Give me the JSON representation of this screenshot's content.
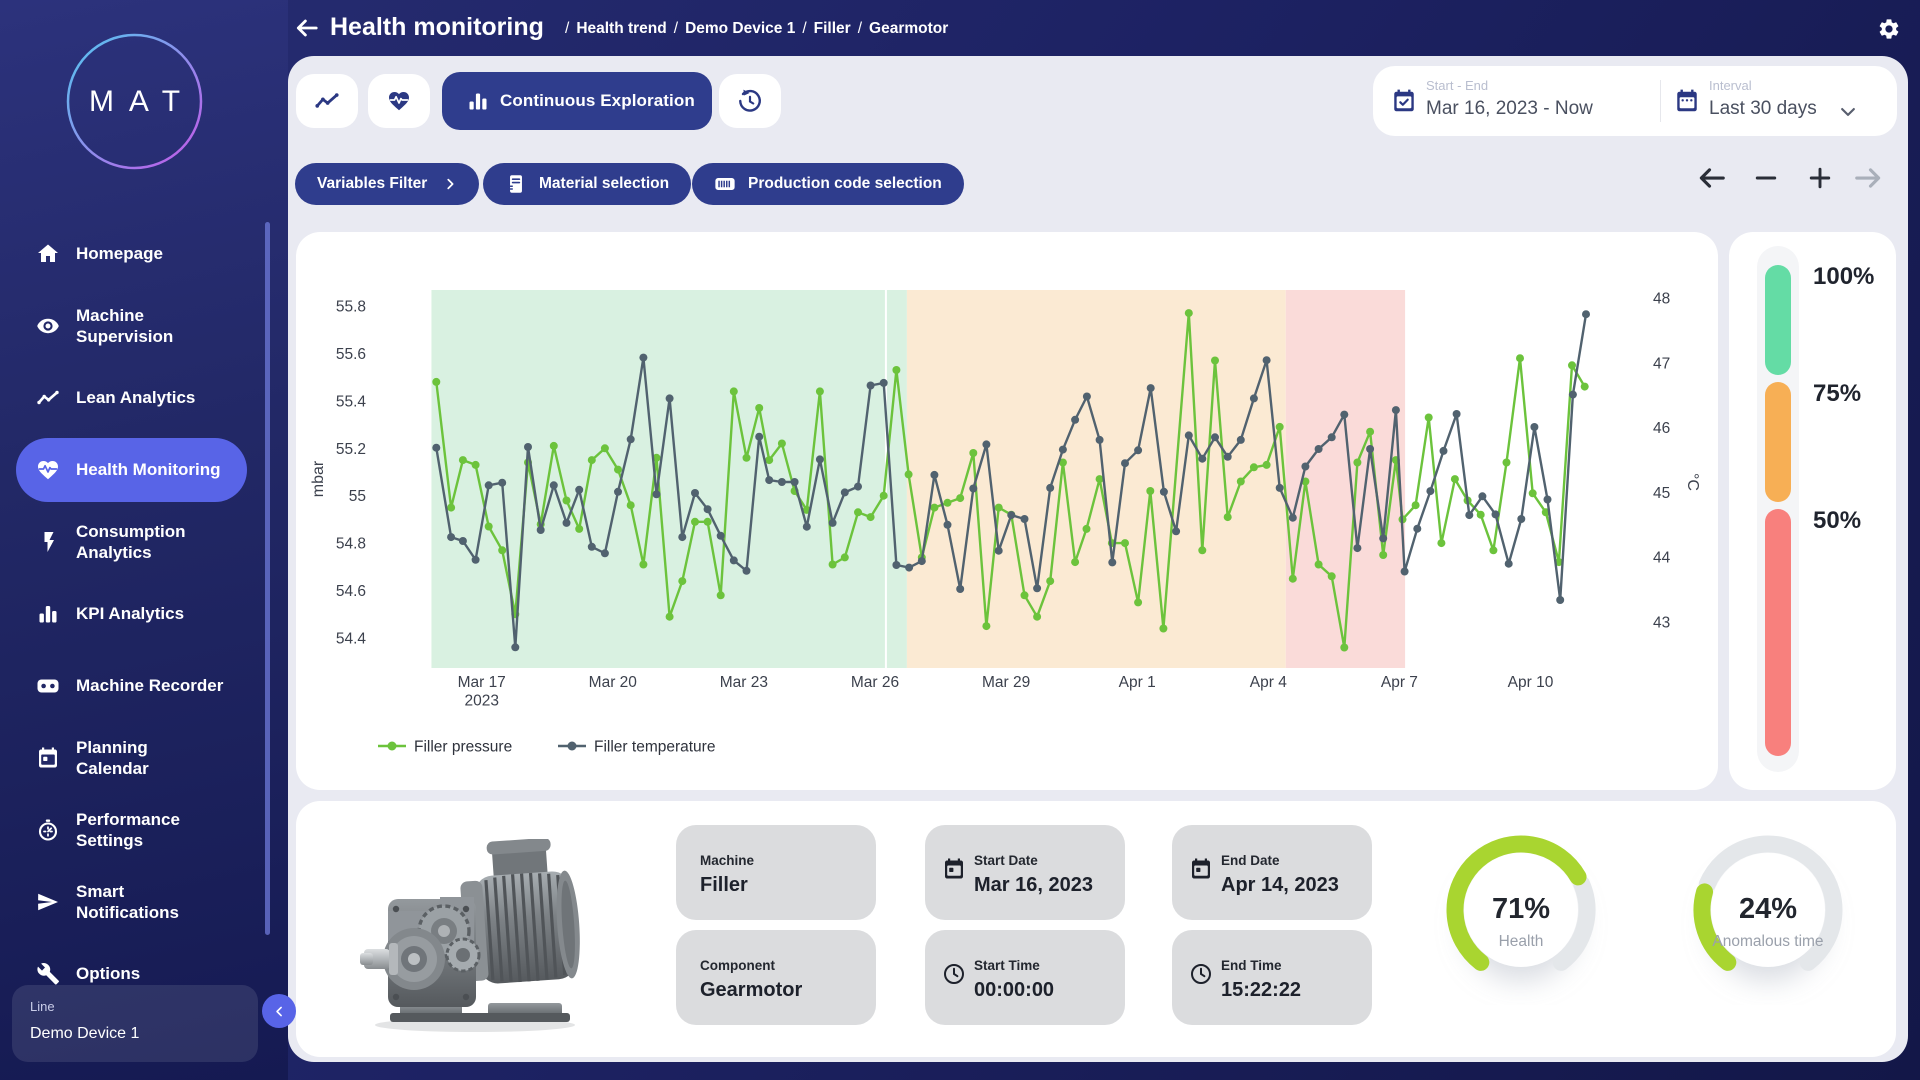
{
  "brand": {
    "logo_text": "MAT"
  },
  "header": {
    "title": "Health monitoring",
    "breadcrumbs": [
      "Health trend",
      "Demo Device 1",
      "Filler",
      "Gearmotor"
    ],
    "breadcrumb_separator": "/"
  },
  "sidebar": {
    "items": [
      {
        "label": "Homepage",
        "icon": "home"
      },
      {
        "label": "Machine Supervision",
        "icon": "eye"
      },
      {
        "label": "Lean Analytics",
        "icon": "trend"
      },
      {
        "label": "Health Monitoring",
        "icon": "heart-pulse",
        "active": true
      },
      {
        "label": "Consumption Analytics",
        "icon": "bolt"
      },
      {
        "label": "KPI Analytics",
        "icon": "bar-chart"
      },
      {
        "label": "Machine Recorder",
        "icon": "recorder"
      },
      {
        "label": "Planning Calendar",
        "icon": "calendar"
      },
      {
        "label": "Performance Settings",
        "icon": "stopwatch"
      },
      {
        "label": "Smart Notifications",
        "icon": "send"
      },
      {
        "label": "Options",
        "icon": "wrench"
      }
    ],
    "device": {
      "label": "Line",
      "value": "Demo Device 1"
    }
  },
  "toolbar": {
    "view_buttons": [
      {
        "icon": "trend",
        "name": "trend-view-button"
      },
      {
        "icon": "heart-pulse",
        "name": "health-view-button"
      }
    ],
    "active_button": {
      "icon": "column-chart",
      "label": "Continuous Exploration"
    },
    "history_button": {
      "icon": "history"
    }
  },
  "daterange": {
    "start_end_label": "Start - End",
    "start_end_value": "Mar 16, 2023 - Now",
    "interval_label": "Interval",
    "interval_value": "Last 30 days"
  },
  "filters": [
    {
      "label": "Variables Filter",
      "icon": null,
      "trailing_icon": "chevron-right"
    },
    {
      "label": "Material selection",
      "icon": "material",
      "trailing_icon": null
    },
    {
      "label": "Production code selection",
      "icon": "barcode",
      "trailing_icon": null
    }
  ],
  "pan_zoom": [
    {
      "icon": "arrow-left",
      "enabled": true
    },
    {
      "icon": "minus",
      "enabled": true
    },
    {
      "icon": "plus",
      "enabled": true
    },
    {
      "icon": "arrow-right",
      "enabled": false
    }
  ],
  "chart_data": {
    "type": "line",
    "x_unit": "days since Mar 16, 2023 00:00",
    "x_range": [
      -0.15,
      27.6
    ],
    "x_ticks": [
      {
        "day": 1,
        "label": "Mar 17",
        "sublabel": "2023"
      },
      {
        "day": 4,
        "label": "Mar 20"
      },
      {
        "day": 7,
        "label": "Mar 23"
      },
      {
        "day": 10,
        "label": "Mar 26"
      },
      {
        "day": 13,
        "label": "Mar 29"
      },
      {
        "day": 16,
        "label": "Apr 1"
      },
      {
        "day": 19,
        "label": "Apr 4"
      },
      {
        "day": 22,
        "label": "Apr 7"
      },
      {
        "day": 25,
        "label": "Apr 10"
      }
    ],
    "y_left": {
      "label": "mbar",
      "min": 54.27,
      "max": 55.87,
      "ticks": [
        54.4,
        54.6,
        54.8,
        55.0,
        55.2,
        55.4,
        55.6,
        55.8
      ]
    },
    "y_right": {
      "label": "°C",
      "min": 42.29,
      "max": 48.12,
      "ticks": [
        43,
        44,
        45,
        46,
        47,
        48
      ]
    },
    "bands": [
      {
        "from": -0.15,
        "to": 10.73,
        "color": "#d9f1e1"
      },
      {
        "from": 10.73,
        "to": 19.4,
        "color": "#fbead3"
      },
      {
        "from": 19.4,
        "to": 22.13,
        "color": "#fadbd9"
      }
    ],
    "marker_line": {
      "day": 10.25,
      "color": "#ffffff"
    },
    "series": [
      {
        "name": "Filler pressure",
        "color": "#6cc33c",
        "axis": "left",
        "points": [
          [
            -0.04,
            55.48
          ],
          [
            0.3,
            54.95
          ],
          [
            0.57,
            55.15
          ],
          [
            0.86,
            55.13
          ],
          [
            1.16,
            54.87
          ],
          [
            1.47,
            54.77
          ],
          [
            1.77,
            54.5
          ],
          [
            2.06,
            55.14
          ],
          [
            2.35,
            54.88
          ],
          [
            2.65,
            55.21
          ],
          [
            2.94,
            54.98
          ],
          [
            3.23,
            54.86
          ],
          [
            3.52,
            55.15
          ],
          [
            3.82,
            55.2
          ],
          [
            4.12,
            55.11
          ],
          [
            4.41,
            54.96
          ],
          [
            4.7,
            54.71
          ],
          [
            5.0,
            55.16
          ],
          [
            5.3,
            54.49
          ],
          [
            5.59,
            54.64
          ],
          [
            5.88,
            54.89
          ],
          [
            6.17,
            54.89
          ],
          [
            6.47,
            54.58
          ],
          [
            6.77,
            55.44
          ],
          [
            7.06,
            55.16
          ],
          [
            7.35,
            55.37
          ],
          [
            7.58,
            55.15
          ],
          [
            7.87,
            55.22
          ],
          [
            8.16,
            55.02
          ],
          [
            8.44,
            54.94
          ],
          [
            8.74,
            55.44
          ],
          [
            9.03,
            54.71
          ],
          [
            9.31,
            54.74
          ],
          [
            9.61,
            54.93
          ],
          [
            9.9,
            54.91
          ],
          [
            10.2,
            55.0
          ],
          [
            10.49,
            55.53
          ],
          [
            10.77,
            55.09
          ],
          [
            11.07,
            54.74
          ],
          [
            11.36,
            54.95
          ],
          [
            11.66,
            54.97
          ],
          [
            11.95,
            54.99
          ],
          [
            12.25,
            55.18
          ],
          [
            12.55,
            54.45
          ],
          [
            12.83,
            54.95
          ],
          [
            13.12,
            54.92
          ],
          [
            13.42,
            54.58
          ],
          [
            13.71,
            54.49
          ],
          [
            14.01,
            54.64
          ],
          [
            14.3,
            55.14
          ],
          [
            14.58,
            54.72
          ],
          [
            14.84,
            54.86
          ],
          [
            15.14,
            55.07
          ],
          [
            15.42,
            54.8
          ],
          [
            15.72,
            54.8
          ],
          [
            16.02,
            54.55
          ],
          [
            16.3,
            55.02
          ],
          [
            16.6,
            54.44
          ],
          [
            17.18,
            55.77
          ],
          [
            17.49,
            54.77
          ],
          [
            17.78,
            55.57
          ],
          [
            18.07,
            54.91
          ],
          [
            18.37,
            55.06
          ],
          [
            18.67,
            55.12
          ],
          [
            18.96,
            55.13
          ],
          [
            19.26,
            55.29
          ],
          [
            19.56,
            54.65
          ],
          [
            19.85,
            55.06
          ],
          [
            20.15,
            54.71
          ],
          [
            20.45,
            54.66
          ],
          [
            20.74,
            54.36
          ],
          [
            21.04,
            55.14
          ],
          [
            21.33,
            55.27
          ],
          [
            21.63,
            54.75
          ],
          [
            21.92,
            55.15
          ],
          [
            22.07,
            54.9
          ],
          [
            22.37,
            54.96
          ],
          [
            22.67,
            55.33
          ],
          [
            22.96,
            54.8
          ],
          [
            23.27,
            55.07
          ],
          [
            23.56,
            54.98
          ],
          [
            23.86,
            54.92
          ],
          [
            24.15,
            54.77
          ],
          [
            24.45,
            55.14
          ],
          [
            24.76,
            55.58
          ],
          [
            25.05,
            55.01
          ],
          [
            25.35,
            54.93
          ],
          [
            25.65,
            54.72
          ],
          [
            25.95,
            55.55
          ],
          [
            26.24,
            55.46
          ]
        ]
      },
      {
        "name": "Filler temperature",
        "color": "#51626f",
        "axis": "right",
        "points": [
          [
            -0.04,
            45.69
          ],
          [
            0.3,
            44.31
          ],
          [
            0.57,
            44.25
          ],
          [
            0.86,
            43.96
          ],
          [
            1.16,
            45.11
          ],
          [
            1.47,
            45.15
          ],
          [
            1.77,
            42.61
          ],
          [
            2.06,
            45.7
          ],
          [
            2.35,
            44.42
          ],
          [
            2.65,
            45.11
          ],
          [
            2.94,
            44.53
          ],
          [
            3.23,
            45.04
          ],
          [
            3.52,
            44.16
          ],
          [
            3.82,
            44.06
          ],
          [
            4.12,
            45.01
          ],
          [
            4.41,
            45.82
          ],
          [
            4.7,
            47.08
          ],
          [
            5.0,
            44.97
          ],
          [
            5.3,
            46.45
          ],
          [
            5.59,
            44.31
          ],
          [
            5.88,
            44.99
          ],
          [
            6.17,
            44.74
          ],
          [
            6.47,
            44.33
          ],
          [
            6.77,
            43.95
          ],
          [
            7.06,
            43.79
          ],
          [
            7.35,
            45.86
          ],
          [
            7.58,
            45.19
          ],
          [
            7.87,
            45.16
          ],
          [
            8.16,
            45.16
          ],
          [
            8.44,
            44.47
          ],
          [
            8.74,
            45.51
          ],
          [
            9.03,
            44.53
          ],
          [
            9.31,
            45.0
          ],
          [
            9.61,
            45.09
          ],
          [
            9.9,
            46.65
          ],
          [
            10.2,
            46.69
          ],
          [
            10.49,
            43.88
          ],
          [
            10.78,
            43.84
          ],
          [
            11.07,
            43.94
          ],
          [
            11.36,
            45.27
          ],
          [
            11.66,
            44.5
          ],
          [
            11.95,
            43.51
          ],
          [
            12.25,
            45.06
          ],
          [
            12.55,
            45.74
          ],
          [
            12.83,
            44.1
          ],
          [
            13.12,
            44.65
          ],
          [
            13.42,
            44.59
          ],
          [
            13.71,
            43.52
          ],
          [
            14.01,
            45.07
          ],
          [
            14.3,
            45.66
          ],
          [
            14.58,
            46.12
          ],
          [
            14.85,
            46.48
          ],
          [
            15.14,
            45.81
          ],
          [
            15.43,
            43.92
          ],
          [
            15.72,
            45.45
          ],
          [
            16.02,
            45.65
          ],
          [
            16.31,
            46.61
          ],
          [
            16.61,
            45.01
          ],
          [
            16.89,
            44.4
          ],
          [
            17.18,
            45.88
          ],
          [
            17.49,
            45.52
          ],
          [
            17.78,
            45.85
          ],
          [
            18.07,
            45.55
          ],
          [
            18.37,
            45.81
          ],
          [
            18.67,
            46.45
          ],
          [
            18.96,
            47.04
          ],
          [
            19.26,
            45.07
          ],
          [
            19.56,
            44.61
          ],
          [
            19.85,
            45.4
          ],
          [
            20.15,
            45.67
          ],
          [
            20.45,
            45.85
          ],
          [
            20.74,
            46.2
          ],
          [
            21.04,
            44.14
          ],
          [
            21.33,
            45.67
          ],
          [
            21.63,
            44.29
          ],
          [
            21.92,
            46.27
          ],
          [
            22.12,
            43.78
          ],
          [
            22.41,
            44.44
          ],
          [
            22.71,
            45.02
          ],
          [
            23.01,
            45.64
          ],
          [
            23.31,
            46.21
          ],
          [
            23.6,
            44.65
          ],
          [
            23.9,
            44.94
          ],
          [
            24.2,
            44.66
          ],
          [
            24.5,
            43.9
          ],
          [
            24.79,
            44.59
          ],
          [
            25.09,
            46.01
          ],
          [
            25.39,
            44.89
          ],
          [
            25.68,
            43.34
          ],
          [
            25.97,
            46.51
          ],
          [
            26.27,
            47.75
          ]
        ]
      }
    ]
  },
  "health_scale": {
    "segments": [
      {
        "label": "100%",
        "color": "#64dca5",
        "span": 2
      },
      {
        "label": "75%",
        "color": "#f7af55",
        "span": 2.2
      },
      {
        "label": "50%",
        "color": "#f8807d",
        "span": 4.5
      }
    ]
  },
  "details": {
    "tiles": [
      {
        "label": "Machine",
        "value": "Filler",
        "icon": null
      },
      {
        "label": "Start Date",
        "value": "Mar 16, 2023",
        "icon": "calendar-date"
      },
      {
        "label": "End Date",
        "value": "Apr 14, 2023",
        "icon": "calendar-date"
      },
      {
        "label": "Component",
        "value": "Gearmotor",
        "icon": null
      },
      {
        "label": "Start Time",
        "value": "00:00:00",
        "icon": "clock"
      },
      {
        "label": "End Time",
        "value": "15:22:22",
        "icon": "clock"
      }
    ]
  },
  "gauges": [
    {
      "value": "71%",
      "label": "Health",
      "percent": 71,
      "color": "#a9d530"
    },
    {
      "value": "24%",
      "label": "Anomalous time",
      "percent": 24,
      "color": "#a9d530"
    }
  ]
}
